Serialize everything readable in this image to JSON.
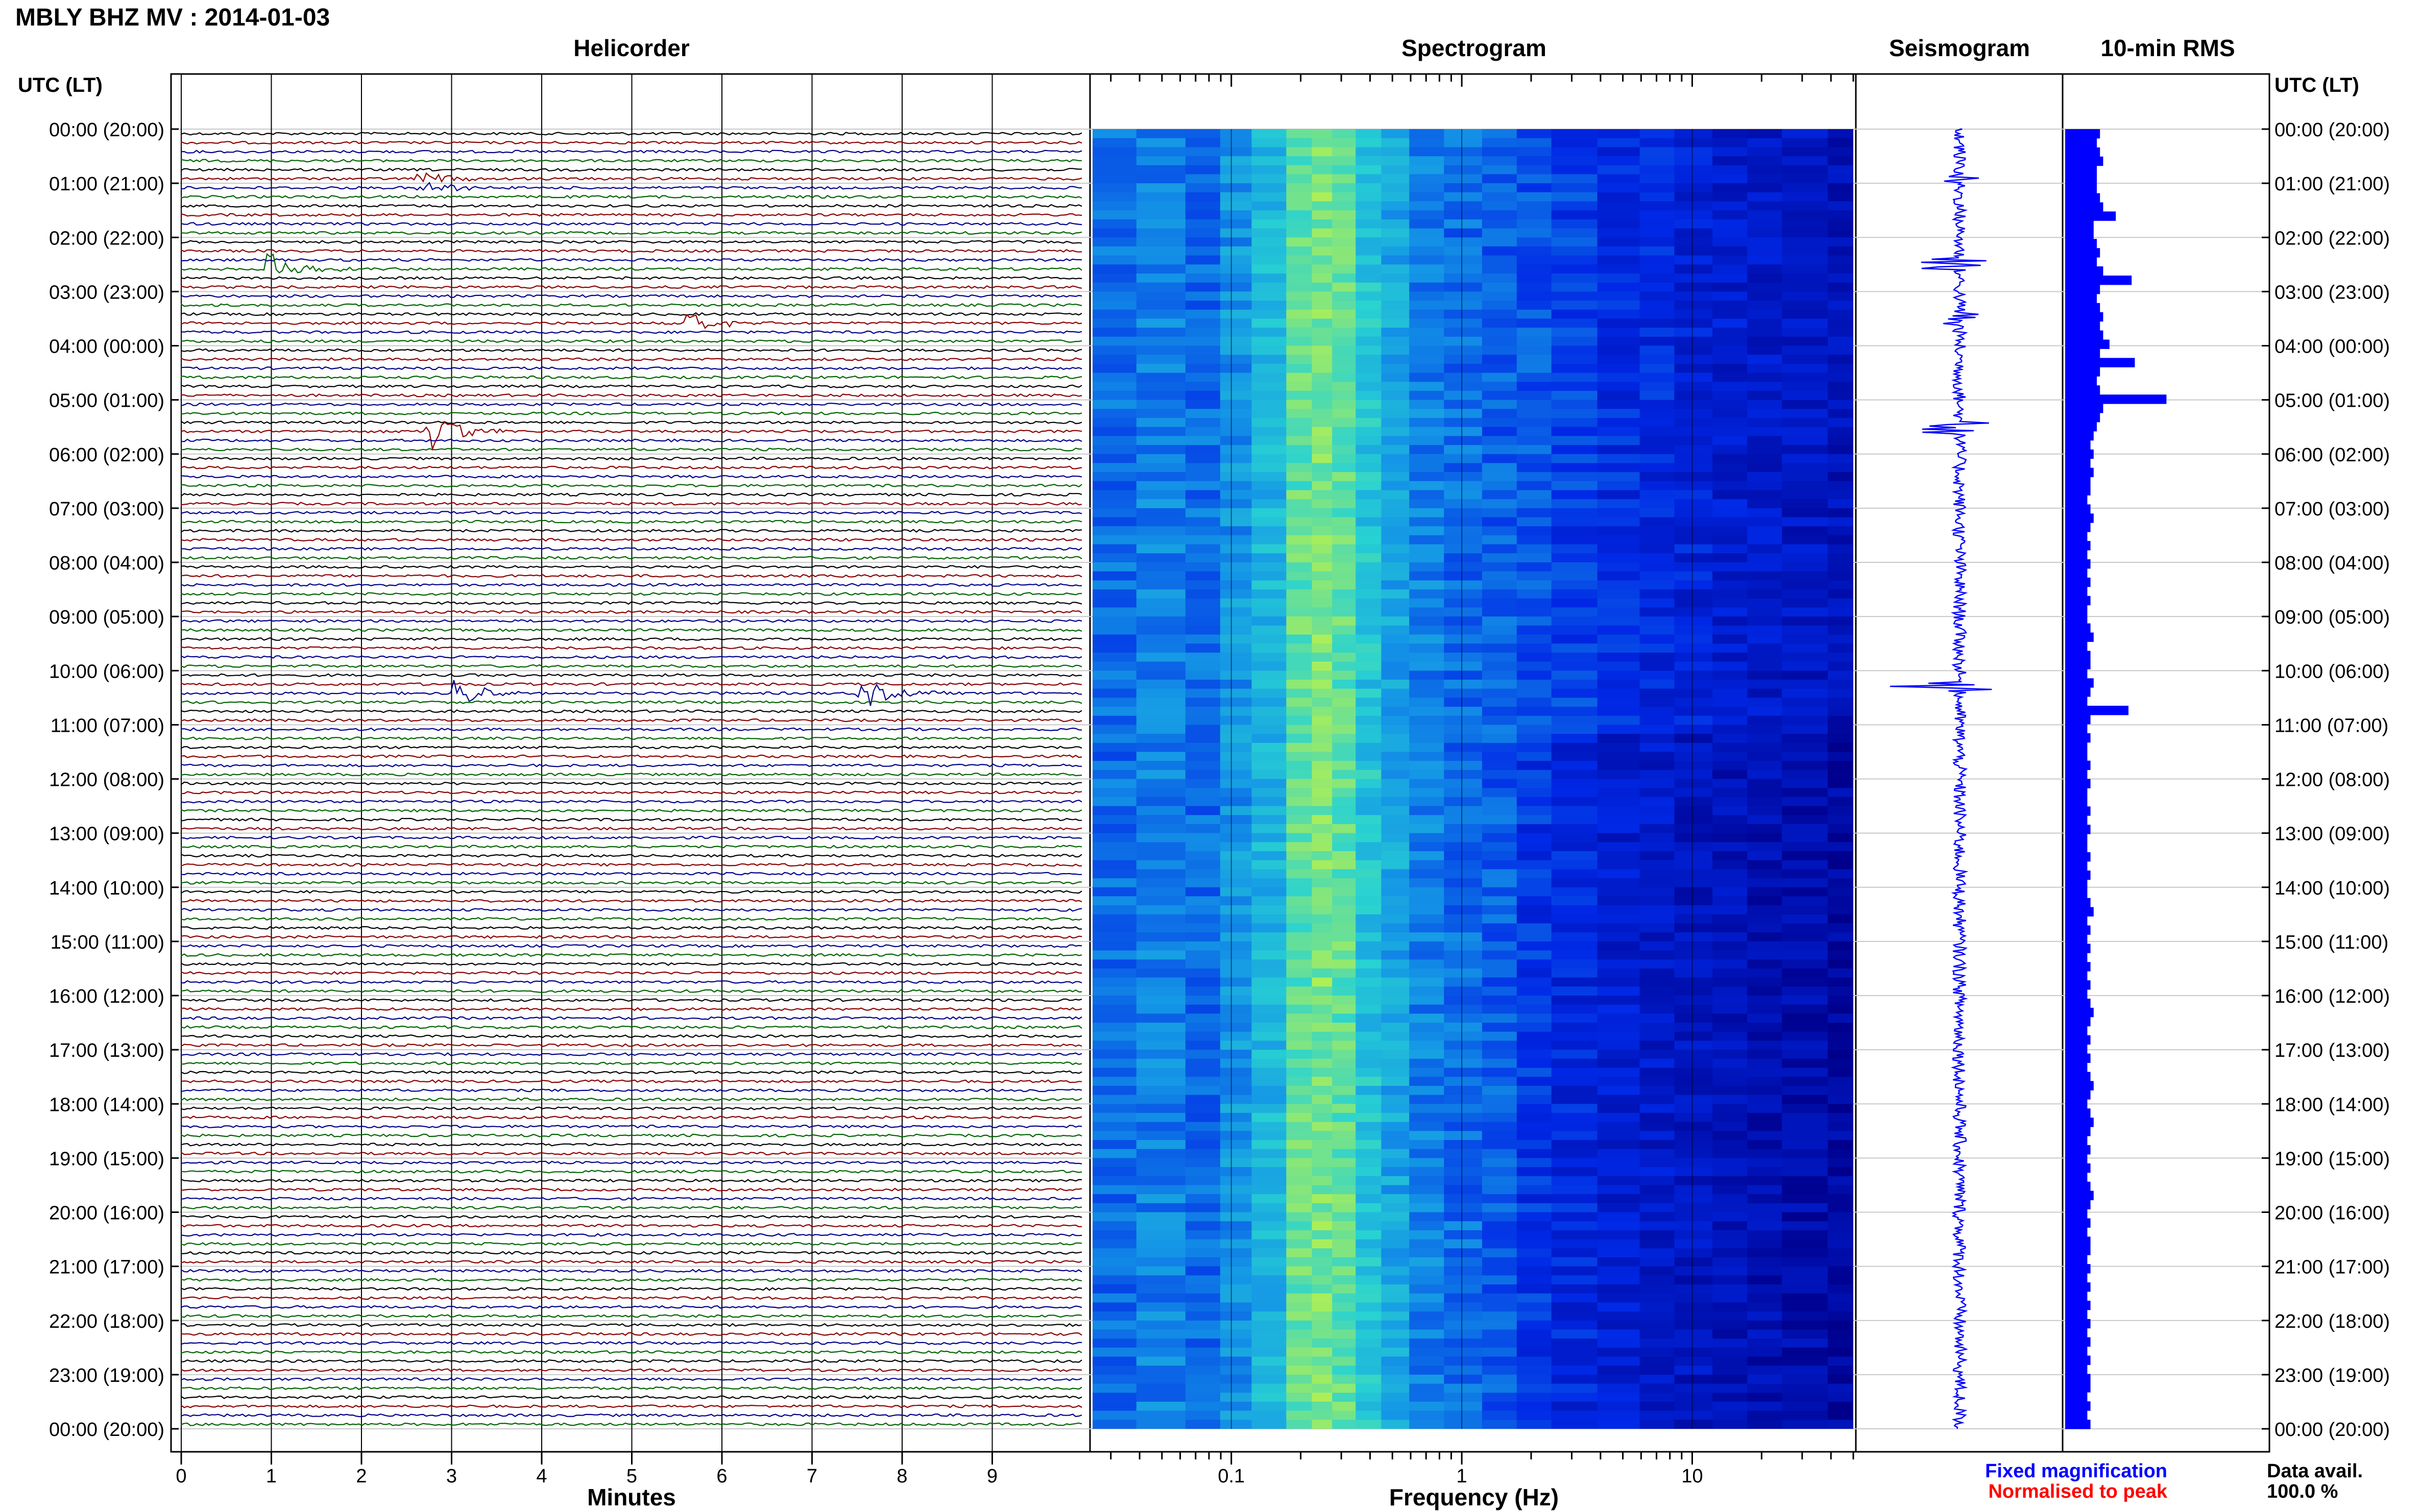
{
  "header": {
    "title": "MBLY BHZ MV : 2014-01-03"
  },
  "panels": {
    "helicorder": "Helicorder",
    "spectrogram": "Spectrogram",
    "seismogram": "Seismogram",
    "rms": "10-min RMS"
  },
  "time_axis": {
    "label": "UTC (LT)",
    "ticks": [
      "00:00 (20:00)",
      "01:00 (21:00)",
      "02:00 (22:00)",
      "03:00 (23:00)",
      "04:00 (00:00)",
      "05:00 (01:00)",
      "06:00 (02:00)",
      "07:00 (03:00)",
      "08:00 (04:00)",
      "09:00 (05:00)",
      "10:00 (06:00)",
      "11:00 (07:00)",
      "12:00 (08:00)",
      "13:00 (09:00)",
      "14:00 (10:00)",
      "15:00 (11:00)",
      "16:00 (12:00)",
      "17:00 (13:00)",
      "18:00 (14:00)",
      "19:00 (15:00)",
      "20:00 (16:00)",
      "21:00 (17:00)",
      "22:00 (18:00)",
      "23:00 (19:00)",
      "00:00 (20:00)"
    ]
  },
  "helicorder_axis": {
    "label": "Minutes",
    "ticks": [
      "0",
      "1",
      "2",
      "3",
      "4",
      "5",
      "6",
      "7",
      "8",
      "9"
    ]
  },
  "spectrogram_axis": {
    "label": "Frequency (Hz)",
    "ticks": [
      "0.1",
      "1",
      "10"
    ],
    "scale": "log"
  },
  "legend": {
    "fixed": "Fixed magnification",
    "normalised": "Normalised to peak",
    "fixed_color": "#0000ff",
    "normalised_color": "#ff0000"
  },
  "data_avail": {
    "label": "Data avail.",
    "value": "100.0 %"
  },
  "colors": {
    "trace_cycle": [
      "#000000",
      "#8b0000",
      "#00008b",
      "#006400"
    ],
    "rms_bar": "#0000ff",
    "seismogram": "#0000ff"
  },
  "chart_data": [
    {
      "type": "line",
      "name": "helicorder",
      "x_range_minutes": [
        0,
        10
      ],
      "lines_per_hour": 6,
      "hours": 24,
      "events": [
        {
          "hour": 0.9,
          "minute": 2.7,
          "amp": 0.5
        },
        {
          "hour": 2.5,
          "minute": 1.05,
          "amp": 1.0
        },
        {
          "hour": 3.5,
          "minute": 5.7,
          "amp": 0.6
        },
        {
          "hour": 5.5,
          "minute": 2.8,
          "amp": 1.3
        },
        {
          "hour": 10.3,
          "minute": 3.1,
          "amp": 0.9
        },
        {
          "hour": 10.3,
          "minute": 7.6,
          "amp": 0.9
        }
      ]
    },
    {
      "type": "heatmap",
      "name": "spectrogram",
      "xlim_hz": [
        0.025,
        50
      ],
      "x_scale": "log",
      "rows": 24,
      "column_frequencies_hz": [
        0.03,
        0.05,
        0.08,
        0.1,
        0.15,
        0.2,
        0.25,
        0.3,
        0.4,
        0.5,
        0.7,
        1,
        1.5,
        2,
        3,
        5,
        7,
        10,
        15,
        20,
        30,
        50
      ],
      "relative_power": [
        0.45,
        0.5,
        0.45,
        0.55,
        0.65,
        0.85,
        0.9,
        0.85,
        0.7,
        0.6,
        0.5,
        0.45,
        0.42,
        0.4,
        0.35,
        0.3,
        0.28,
        0.25,
        0.22,
        0.2,
        0.18,
        0.15
      ]
    },
    {
      "type": "bar",
      "name": "10-min RMS",
      "hours": 24,
      "values": [
        1.1,
        1.0,
        1.1,
        1.2,
        1.0,
        1.0,
        1.0,
        1.1,
        1.2,
        1.6,
        0.9,
        0.9,
        1.0,
        1.1,
        1.0,
        1.2,
        2.1,
        1.1,
        1.0,
        1.1,
        1.2,
        1.1,
        1.2,
        1.4,
        1.1,
        2.2,
        1.1,
        1.0,
        1.1,
        3.2,
        1.2,
        1.1,
        1.0,
        0.9,
        0.8,
        0.9,
        0.8,
        0.9,
        0.8,
        0.8,
        0.7,
        0.8,
        0.9,
        0.8,
        0.7,
        0.8,
        0.7,
        0.8,
        0.7,
        0.8,
        0.7,
        0.8,
        0.7,
        0.7,
        0.8,
        0.9,
        0.7,
        0.8,
        0.8,
        0.7,
        0.9,
        0.8,
        0.7,
        2.0,
        0.8,
        0.7,
        0.8,
        0.7,
        0.7,
        0.8,
        0.7,
        0.8,
        0.7,
        0.7,
        0.8,
        0.7,
        0.8,
        0.7,
        0.7,
        0.8,
        0.7,
        0.8,
        0.7,
        0.7,
        0.8,
        0.9,
        0.7,
        0.8,
        0.7,
        0.8,
        0.7,
        0.8,
        0.7,
        0.8,
        0.7,
        0.8,
        0.9,
        0.8,
        0.7,
        0.8,
        0.7,
        0.8,
        0.7,
        0.8,
        0.9,
        0.8,
        0.7,
        0.8,
        0.9,
        0.8,
        0.7,
        0.8,
        0.7,
        0.8,
        0.7,
        0.8,
        0.9,
        0.8,
        0.7,
        0.8,
        0.7,
        0.8,
        0.8,
        0.7,
        0.8,
        0.7,
        0.8,
        0.7,
        0.8,
        0.7,
        0.8,
        0.7,
        0.8,
        0.7,
        0.8,
        0.7,
        0.8,
        0.8,
        0.7,
        0.8,
        0.7,
        0.8
      ]
    }
  ]
}
